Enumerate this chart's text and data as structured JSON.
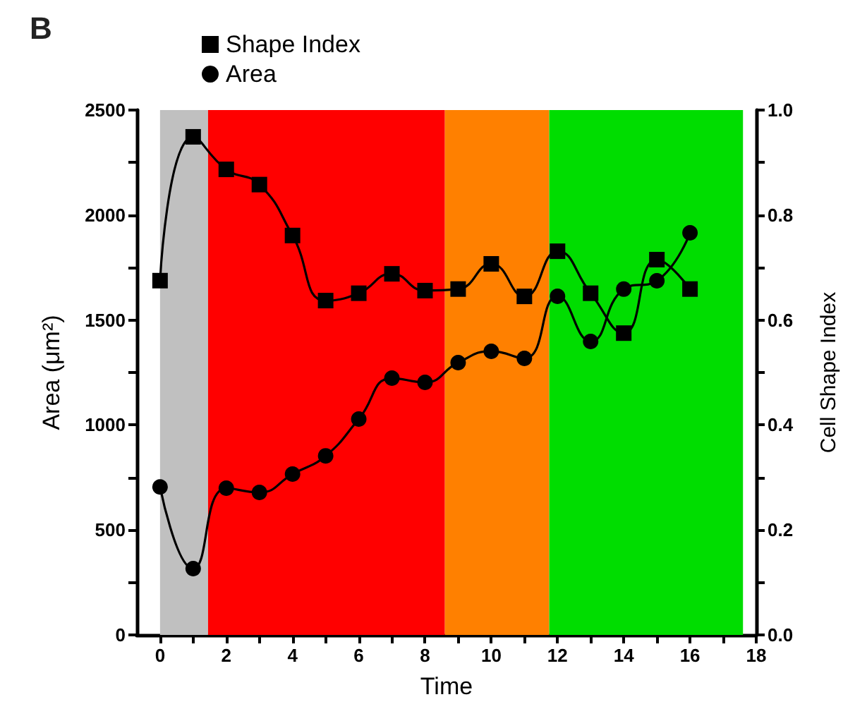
{
  "chart_data": {
    "type": "line",
    "title": "B",
    "xlabel": "Time",
    "ylabel": "Area (μm²)",
    "y2label": "Cell Shape Index",
    "x": [
      0,
      1,
      2,
      3,
      4,
      5,
      6,
      7,
      8,
      9,
      10,
      11,
      12,
      13,
      14,
      15,
      16
    ],
    "series": [
      {
        "name": "Shape Index",
        "color": "#000000",
        "marker": "square",
        "axis": "y2",
        "values": [
          0.675,
          0.949,
          0.887,
          0.858,
          0.761,
          0.637,
          0.651,
          0.688,
          0.656,
          0.659,
          0.707,
          0.645,
          0.731,
          0.651,
          0.575,
          0.715,
          0.659
        ]
      },
      {
        "name": "Area",
        "color": "#000000",
        "marker": "circle",
        "values": [
          705,
          316,
          699,
          679,
          766,
          853,
          1028,
          1223,
          1203,
          1297,
          1351,
          1317,
          1613,
          1398,
          1647,
          1687,
          1915
        ]
      }
    ],
    "xlim": [
      -0.7,
      18
    ],
    "xticks": [
      0,
      {
        "value": 1,
        "label": null
      },
      2,
      {
        "value": 3,
        "label": null
      },
      4,
      {
        "value": 5,
        "label": null
      },
      6,
      {
        "value": 7,
        "label": null
      },
      8,
      {
        "value": 9,
        "label": null
      },
      10,
      {
        "value": 11,
        "label": null
      },
      12,
      {
        "value": 13,
        "label": null
      },
      14,
      {
        "value": 15,
        "label": null
      },
      16,
      {
        "value": 17,
        "label": null
      },
      18
    ],
    "ylim": [
      0,
      2500
    ],
    "yticks": [
      0,
      {
        "value": 250,
        "label": null
      },
      500,
      {
        "value": 750,
        "label": null
      },
      1000,
      {
        "value": 1250,
        "label": null
      },
      1500,
      {
        "value": 1750,
        "label": null
      },
      2000,
      {
        "value": 2250,
        "label": null
      },
      2500
    ],
    "y2lim": [
      0,
      1
    ],
    "y2ticks": [
      {
        "value": 0,
        "label": "0.0"
      },
      {
        "value": 0.1,
        "label": null
      },
      0.2,
      {
        "value": 0.3,
        "label": null
      },
      0.4,
      {
        "value": 0.5,
        "label": null
      },
      0.6,
      {
        "value": 0.7,
        "label": null
      },
      0.8,
      {
        "value": 0.9,
        "label": null
      },
      {
        "value": 1,
        "label": "1.0"
      }
    ],
    "bands": [
      {
        "axis": "x",
        "from": 0,
        "to": 1.45,
        "color": "#c0c0c0"
      },
      {
        "axis": "x",
        "from": 1.45,
        "to": 8.6,
        "color": "#ff0000"
      },
      {
        "axis": "x",
        "from": 8.6,
        "to": 11.75,
        "color": "#ff8000"
      },
      {
        "axis": "x",
        "from": 11.75,
        "to": 17.6,
        "color": "#00dd00"
      }
    ],
    "grid": false,
    "legend": "top left",
    "line_style": "solid"
  }
}
